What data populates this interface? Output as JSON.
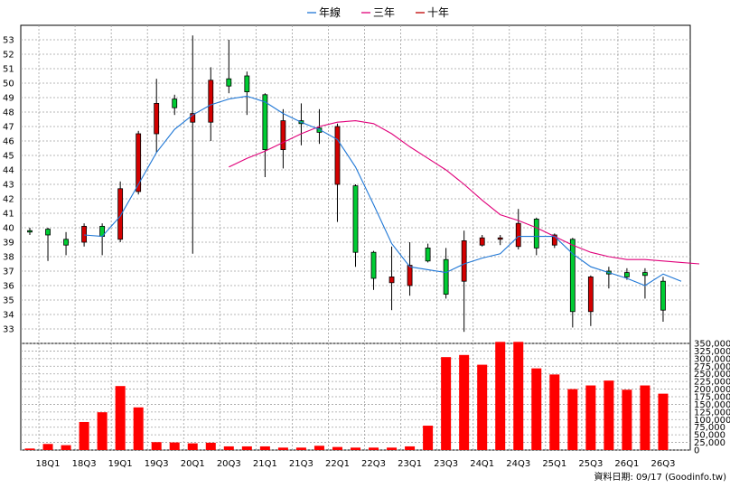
{
  "chart_data": {
    "type": "candlestick",
    "legend": [
      {
        "name": "年線",
        "color": "#1f77d6"
      },
      {
        "name": "三年",
        "color": "#e0007a"
      },
      {
        "name": "十年",
        "color": "#c00000"
      }
    ],
    "colors": {
      "up": "#d40000",
      "down": "#00cc33",
      "volume": "#ff0000",
      "annual_ma": "#1f77d6",
      "three_year_ma": "#e0007a"
    },
    "price_ylim": [
      32,
      54
    ],
    "price_ticks": [
      "33",
      "34",
      "35",
      "36",
      "37",
      "38",
      "39",
      "40",
      "41",
      "42",
      "43",
      "44",
      "45",
      "46",
      "47",
      "48",
      "49",
      "50",
      "51",
      "52",
      "53"
    ],
    "volume_ylim": [
      0,
      350000
    ],
    "volume_ticks": [
      "0",
      "25,000",
      "50,000",
      "75,000",
      "100,000",
      "125,000",
      "150,000",
      "175,000",
      "200,000",
      "225,000",
      "250,000",
      "275,000",
      "300,000",
      "325,000",
      "350,000"
    ],
    "x_labels": [
      "18Q1",
      "18Q3",
      "19Q1",
      "19Q3",
      "20Q1",
      "20Q3",
      "21Q1",
      "21Q3",
      "22Q1",
      "22Q3",
      "23Q1",
      "23Q3",
      "24Q1",
      "24Q3",
      "25Q1",
      "25Q3",
      "26Q1",
      "26Q3"
    ],
    "candles": [
      {
        "o": 39.8,
        "h": 40.0,
        "l": 39.5,
        "c": 39.7
      },
      {
        "o": 39.9,
        "h": 40.0,
        "l": 37.7,
        "c": 39.5
      },
      {
        "o": 39.2,
        "h": 39.7,
        "l": 38.1,
        "c": 38.8
      },
      {
        "o": 39.0,
        "h": 40.3,
        "l": 38.7,
        "c": 40.1
      },
      {
        "o": 40.1,
        "h": 40.3,
        "l": 38.1,
        "c": 39.4
      },
      {
        "o": 39.2,
        "h": 43.2,
        "l": 39.0,
        "c": 42.7
      },
      {
        "o": 42.5,
        "h": 46.7,
        "l": 42.3,
        "c": 46.5
      },
      {
        "o": 46.5,
        "h": 50.3,
        "l": 45.2,
        "c": 48.6
      },
      {
        "o": 48.9,
        "h": 49.2,
        "l": 47.8,
        "c": 48.3
      },
      {
        "o": 47.3,
        "h": 53.3,
        "l": 38.2,
        "c": 47.9
      },
      {
        "o": 47.3,
        "h": 51.1,
        "l": 46.0,
        "c": 50.2
      },
      {
        "o": 50.3,
        "h": 53.0,
        "l": 49.3,
        "c": 49.8
      },
      {
        "o": 50.5,
        "h": 50.8,
        "l": 47.8,
        "c": 49.4
      },
      {
        "o": 49.2,
        "h": 49.3,
        "l": 43.5,
        "c": 45.4
      },
      {
        "o": 45.4,
        "h": 48.2,
        "l": 44.1,
        "c": 47.4
      },
      {
        "o": 47.4,
        "h": 48.6,
        "l": 45.7,
        "c": 47.2
      },
      {
        "o": 46.9,
        "h": 48.2,
        "l": 45.8,
        "c": 46.6
      },
      {
        "o": 43.0,
        "h": 47.2,
        "l": 40.4,
        "c": 47.0
      },
      {
        "o": 42.9,
        "h": 43.0,
        "l": 37.3,
        "c": 38.3
      },
      {
        "o": 38.3,
        "h": 38.4,
        "l": 35.7,
        "c": 36.5
      },
      {
        "o": 36.2,
        "h": 38.7,
        "l": 34.3,
        "c": 36.6
      },
      {
        "o": 36.0,
        "h": 39.0,
        "l": 35.3,
        "c": 37.4
      },
      {
        "o": 38.6,
        "h": 38.9,
        "l": 37.6,
        "c": 37.7
      },
      {
        "o": 37.8,
        "h": 38.6,
        "l": 35.1,
        "c": 35.4
      },
      {
        "o": 36.3,
        "h": 39.8,
        "l": 32.8,
        "c": 39.1
      },
      {
        "o": 38.8,
        "h": 39.5,
        "l": 38.7,
        "c": 39.3
      },
      {
        "o": 39.2,
        "h": 39.5,
        "l": 38.8,
        "c": 39.3
      },
      {
        "o": 38.7,
        "h": 41.3,
        "l": 38.5,
        "c": 40.3
      },
      {
        "o": 40.6,
        "h": 40.7,
        "l": 38.1,
        "c": 38.6
      },
      {
        "o": 38.8,
        "h": 39.6,
        "l": 38.6,
        "c": 39.5
      },
      {
        "o": 39.2,
        "h": 39.3,
        "l": 33.1,
        "c": 34.2
      },
      {
        "o": 34.2,
        "h": 36.7,
        "l": 33.2,
        "c": 36.6
      },
      {
        "o": 37.0,
        "h": 37.3,
        "l": 35.8,
        "c": 36.8
      },
      {
        "o": 36.9,
        "h": 37.2,
        "l": 36.4,
        "c": 36.6
      },
      {
        "o": 36.9,
        "h": 37.2,
        "l": 35.1,
        "c": 36.7
      },
      {
        "o": 36.3,
        "h": 36.6,
        "l": 33.5,
        "c": 34.3
      }
    ],
    "annual_ma": [
      [
        3,
        39.5
      ],
      [
        4,
        39.4
      ],
      [
        5,
        40.8
      ],
      [
        6,
        43.0
      ],
      [
        7,
        45.2
      ],
      [
        8,
        46.8
      ],
      [
        9,
        47.8
      ],
      [
        10,
        48.5
      ],
      [
        11,
        48.9
      ],
      [
        12,
        49.1
      ],
      [
        13,
        48.7
      ],
      [
        14,
        47.9
      ],
      [
        15,
        47.3
      ],
      [
        16,
        46.8
      ],
      [
        17,
        46.1
      ],
      [
        18,
        44.2
      ],
      [
        19,
        41.6
      ],
      [
        20,
        38.9
      ],
      [
        21,
        37.3
      ],
      [
        22,
        37.1
      ],
      [
        23,
        36.9
      ],
      [
        24,
        37.5
      ],
      [
        25,
        37.9
      ],
      [
        26,
        38.2
      ],
      [
        27,
        39.4
      ],
      [
        28,
        39.4
      ],
      [
        29,
        39.4
      ],
      [
        30,
        38.2
      ],
      [
        31,
        37.3
      ],
      [
        32,
        36.9
      ],
      [
        33,
        36.5
      ],
      [
        34,
        36.0
      ],
      [
        35,
        36.8
      ],
      [
        36,
        36.3
      ]
    ],
    "three_year_ma": [
      [
        11,
        44.2
      ],
      [
        12,
        44.8
      ],
      [
        13,
        45.3
      ],
      [
        14,
        45.9
      ],
      [
        15,
        46.5
      ],
      [
        16,
        47.0
      ],
      [
        17,
        47.3
      ],
      [
        18,
        47.4
      ],
      [
        19,
        47.2
      ],
      [
        20,
        46.5
      ],
      [
        21,
        45.6
      ],
      [
        22,
        44.8
      ],
      [
        23,
        44.0
      ],
      [
        24,
        43.0
      ],
      [
        25,
        41.9
      ],
      [
        26,
        40.9
      ],
      [
        27,
        40.5
      ],
      [
        28,
        40.0
      ],
      [
        29,
        39.4
      ],
      [
        30,
        38.8
      ],
      [
        31,
        38.3
      ],
      [
        32,
        38.0
      ],
      [
        33,
        37.8
      ],
      [
        34,
        37.8
      ],
      [
        35,
        37.7
      ],
      [
        36,
        37.6
      ],
      [
        37,
        37.5
      ]
    ],
    "volumes": [
      5000,
      20000,
      16000,
      92000,
      124000,
      210000,
      140000,
      26000,
      25000,
      22000,
      24000,
      12000,
      12000,
      12000,
      8000,
      8000,
      14000,
      10000,
      8000,
      8000,
      8000,
      12000,
      80000,
      305000,
      312000,
      280000,
      355000,
      355000,
      268000,
      248000,
      200000,
      212000,
      228000,
      198000,
      212000,
      185000
    ]
  },
  "footer": {
    "text": "資料日期: 09/17  (Goodinfo.tw)"
  }
}
